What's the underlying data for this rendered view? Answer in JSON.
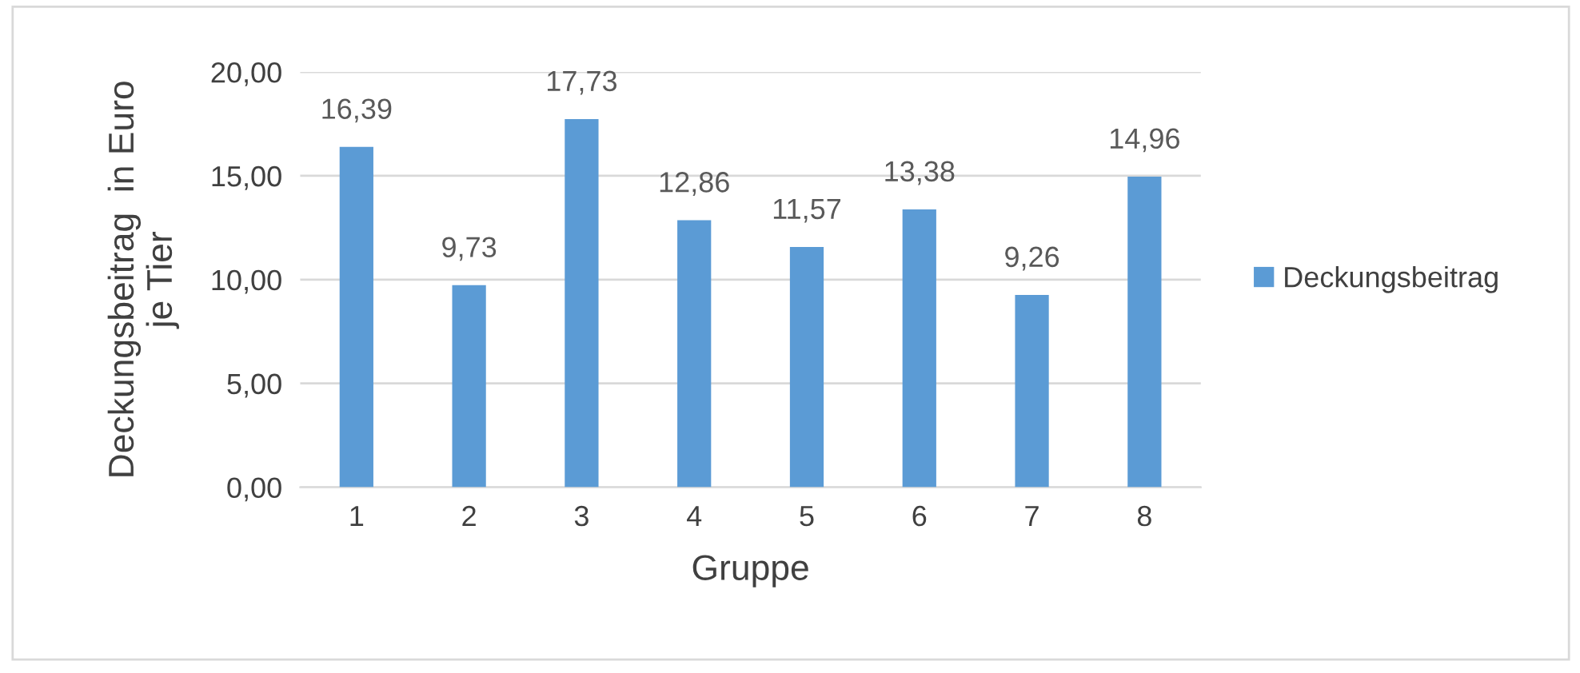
{
  "chart_data": {
    "type": "bar",
    "xlabel": "Gruppe",
    "ylabel": "Deckungsbeitrag  in Euro\nje Tier",
    "categories": [
      "1",
      "2",
      "3",
      "4",
      "5",
      "6",
      "7",
      "8"
    ],
    "series": [
      {
        "name": "Deckungsbeitrag",
        "color": "#5b9bd5",
        "values": [
          16.39,
          9.73,
          17.73,
          12.86,
          11.57,
          13.38,
          9.26,
          14.96
        ],
        "value_labels": [
          "16,39",
          "9,73",
          "17,73",
          "12,86",
          "11,57",
          "13,38",
          "9,26",
          "14,96"
        ]
      }
    ],
    "ylim": [
      0,
      20
    ],
    "yticks": [
      {
        "value": 0,
        "label": "0,00"
      },
      {
        "value": 5,
        "label": "5,00"
      },
      {
        "value": 10,
        "label": "10,00"
      },
      {
        "value": 15,
        "label": "15,00"
      },
      {
        "value": 20,
        "label": "20,00"
      }
    ],
    "grid": "y",
    "legend": "right"
  }
}
